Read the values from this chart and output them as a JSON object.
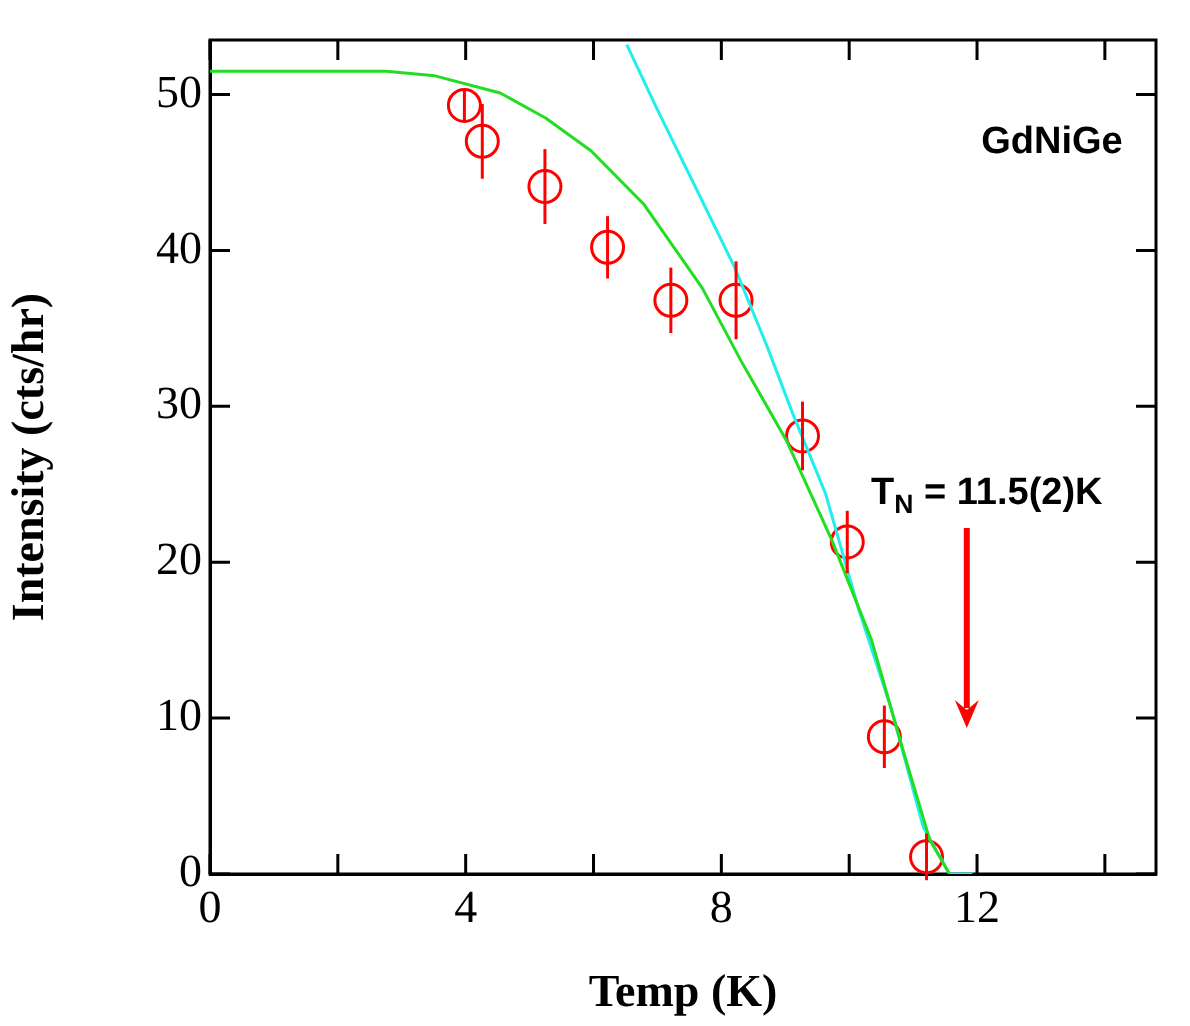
{
  "chart_data": {
    "type": "scatter",
    "xlabel": "Temp (K)",
    "ylabel": "Intensity (cts/hr)",
    "xlim": [
      0,
      14.8
    ],
    "ylim": [
      0,
      53.5
    ],
    "xticks": [
      0,
      {
        "value": 2,
        "label": null
      },
      4,
      {
        "value": 6,
        "label": null
      },
      8,
      {
        "value": 10,
        "label": null
      },
      12,
      {
        "value": 14,
        "label": null
      }
    ],
    "yticks": [
      0,
      10,
      20,
      30,
      40,
      50
    ],
    "grid": false,
    "series": [
      {
        "type": "line",
        "color": "#22dd22",
        "marker": "none",
        "x": [
          0,
          2.75,
          3.52,
          4.54,
          5.25,
          5.96,
          6.78,
          7.7,
          8.31,
          9.02,
          9.73,
          10.35,
          10.86,
          11.26,
          11.57
        ],
        "values": [
          51.5,
          51.5,
          51.2,
          50.1,
          48.5,
          46.4,
          43.0,
          37.6,
          32.9,
          27.8,
          21.4,
          15.0,
          7.7,
          2.2,
          0
        ]
      },
      {
        "type": "line",
        "color": "#22eeee",
        "marker": "none",
        "x": [
          6.52,
          6.98,
          7.59,
          8.21,
          8.72,
          9.12,
          9.63,
          10.14,
          10.65,
          11.16,
          11.57,
          11.93
        ],
        "values": [
          53.2,
          49.2,
          44.1,
          38.9,
          33.8,
          29.5,
          24.4,
          17.1,
          10.7,
          3.0,
          0,
          0
        ]
      },
      {
        "color": "#ff0000",
        "marker": "circle",
        "x": [
          3.98,
          4.26,
          5.24,
          6.22,
          7.21,
          8.23,
          9.27,
          9.97,
          10.55,
          11.21
        ],
        "values": [
          49.3,
          47.0,
          44.1,
          40.2,
          36.8,
          36.8,
          28.1,
          21.3,
          8.8,
          1.1
        ],
        "errors": [
          1.0,
          2.4,
          2.4,
          2.0,
          2.1,
          2.5,
          2.2,
          2.0,
          2.0,
          1.5
        ]
      }
    ],
    "annotations": [
      "GdNiGe",
      "T$_{N}$ = 11.5(2)K"
    ]
  }
}
